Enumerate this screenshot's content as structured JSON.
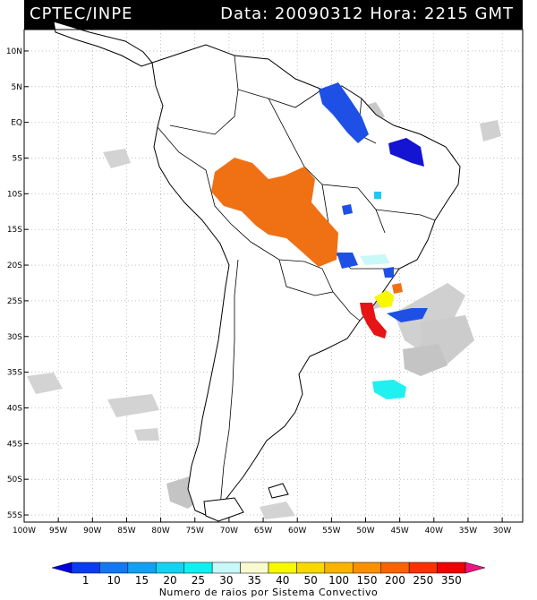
{
  "header": {
    "source": "CPTEC/INPE",
    "datetime": "Data: 20090312 Hora: 2215 GMT"
  },
  "map": {
    "lat_labels": [
      "10N",
      "5N",
      "EQ",
      "5S",
      "10S",
      "15S",
      "20S",
      "25S",
      "30S",
      "35S",
      "40S",
      "45S",
      "50S",
      "55S"
    ],
    "lon_labels": [
      "100W",
      "95W",
      "90W",
      "85W",
      "80W",
      "75W",
      "70W",
      "65W",
      "60W",
      "55W",
      "50W",
      "45W",
      "40W",
      "35W",
      "30W"
    ],
    "lon_range": [
      -100,
      -27
    ],
    "lat_range": [
      13,
      -56
    ],
    "grid": true,
    "cloud_color": "#c8c8c8",
    "coast_color": "#000000"
  },
  "colorbar": {
    "title": "Numero de raios por Sistema Convectivo",
    "labels": [
      "1",
      "10",
      "15",
      "20",
      "25",
      "30",
      "35",
      "40",
      "50",
      "100",
      "150",
      "200",
      "250",
      "350"
    ],
    "colors": [
      "#0000e0",
      "#0a3cf0",
      "#1478f0",
      "#14a0f0",
      "#14d2f0",
      "#10f0f0",
      "#c8f8f8",
      "#fafad0",
      "#f8f800",
      "#f8d800",
      "#f8b400",
      "#f89000",
      "#f86400",
      "#f83200",
      "#f00000",
      "#f01482"
    ]
  },
  "systems": [
    {
      "level": 1,
      "color": "#1414d2"
    },
    {
      "level": 10,
      "color": "#1e50e6"
    },
    {
      "level": 20,
      "color": "#1ec8f0"
    },
    {
      "level": 25,
      "color": "#20f0f0"
    },
    {
      "level": 30,
      "color": "#c8f8f8"
    },
    {
      "level": 40,
      "color": "#f8f800"
    },
    {
      "level": 200,
      "color": "#f07014"
    },
    {
      "level": 350,
      "color": "#e61414"
    }
  ]
}
